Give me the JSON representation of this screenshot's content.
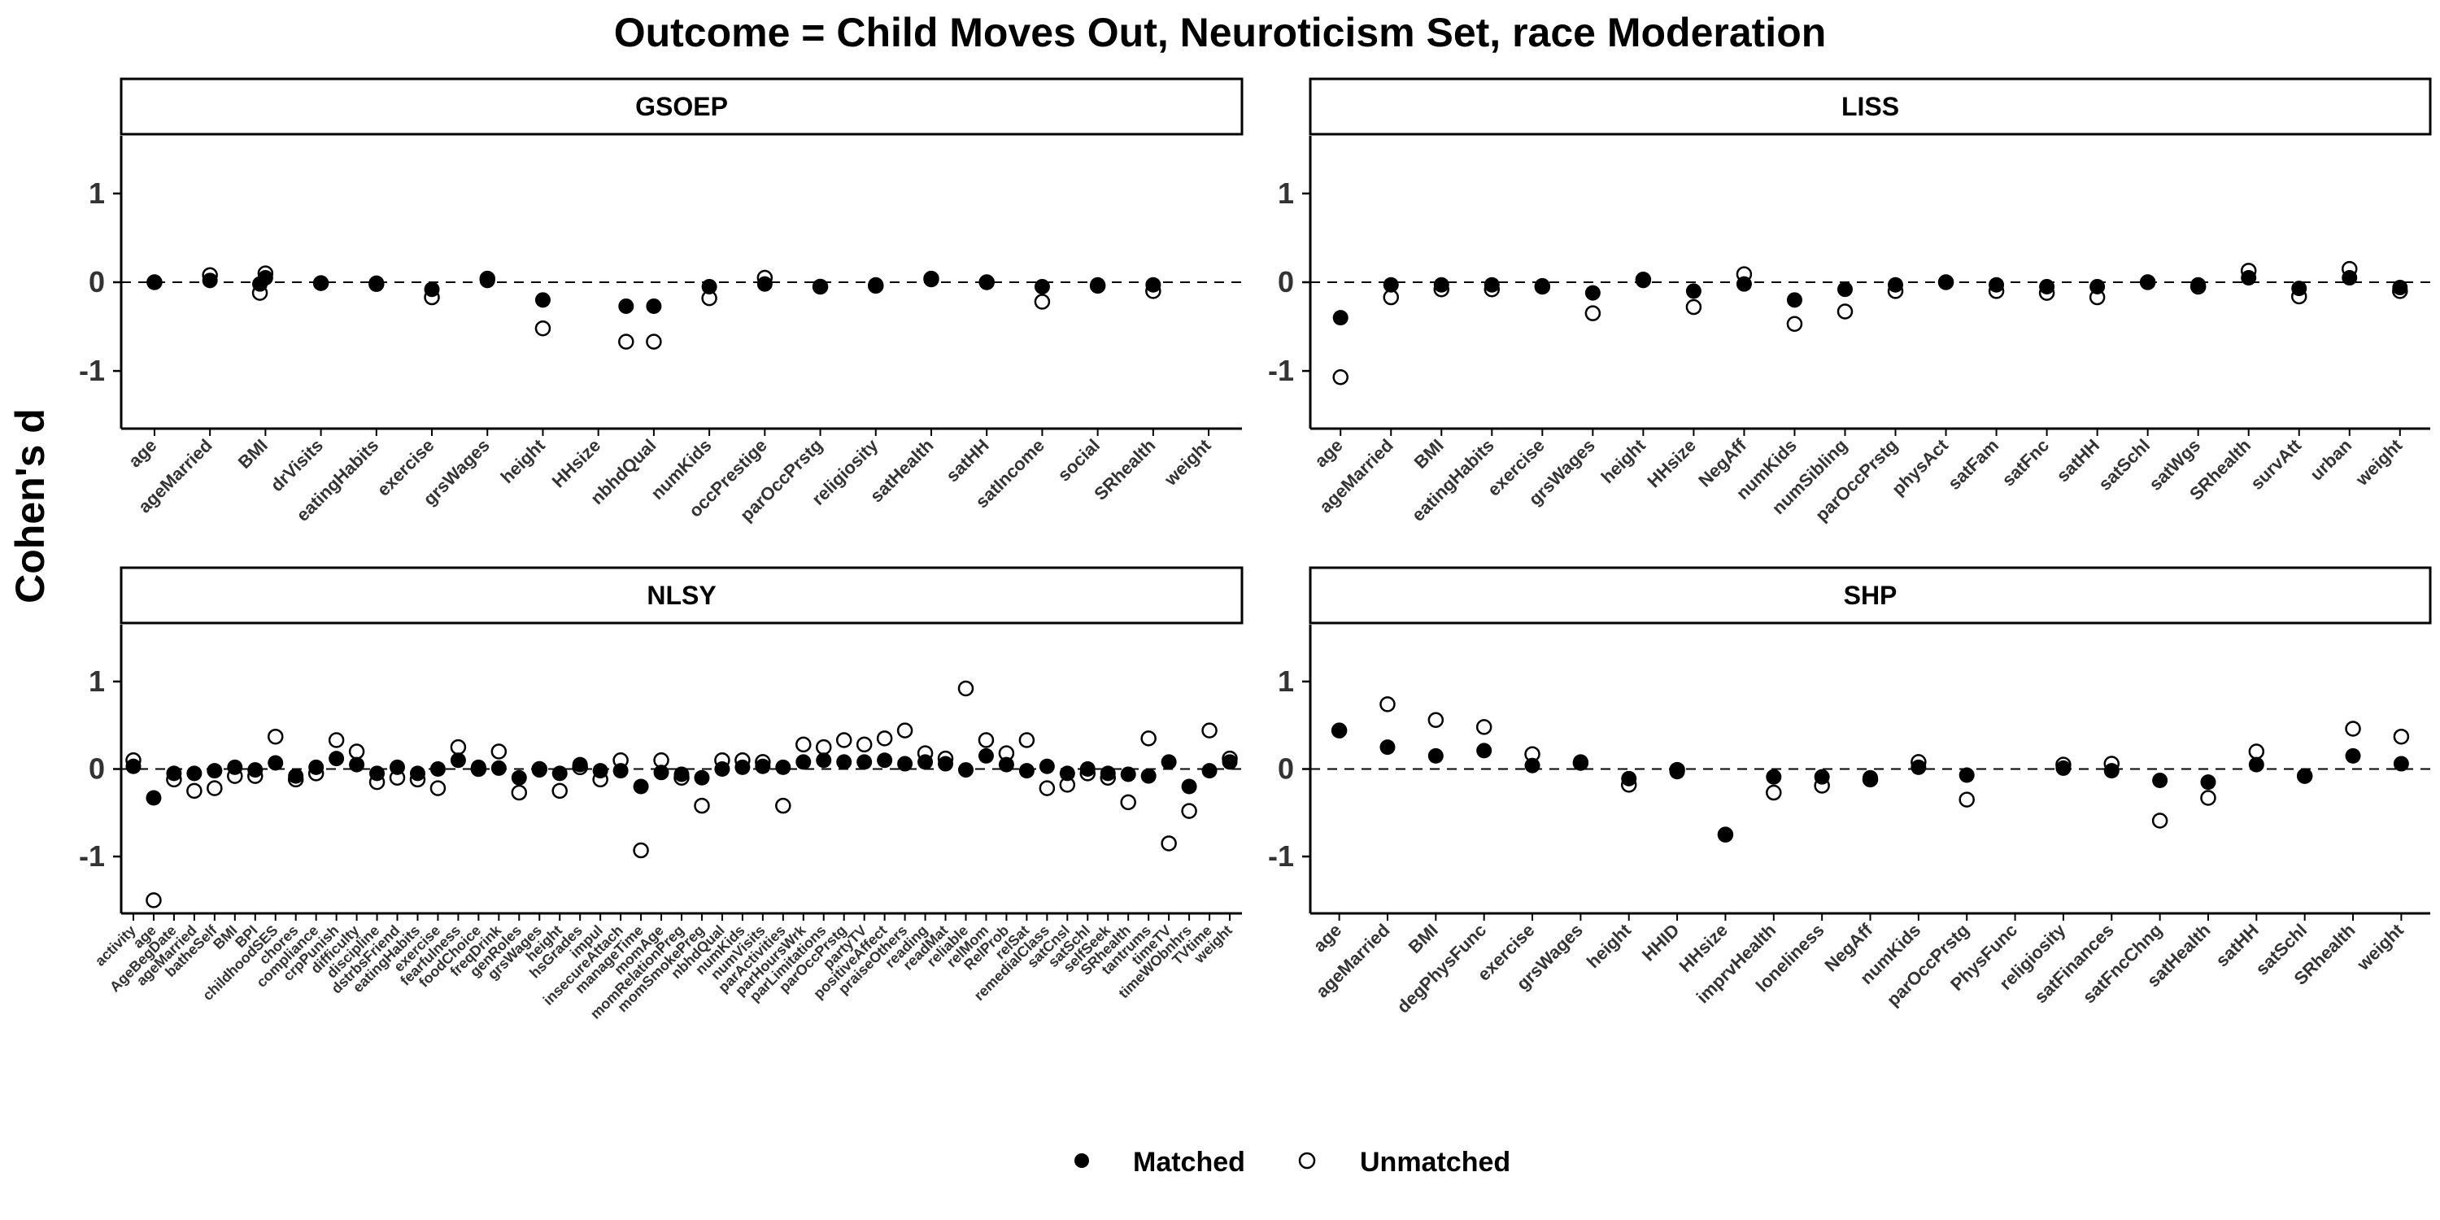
{
  "title": "Outcome = Child Moves Out, Neuroticism Set, race Moderation",
  "ylabel": "Cohen's d",
  "legend": {
    "placement": "bottom",
    "matched_label": "Matched",
    "unmatched_label": "Unmatched"
  },
  "chart_data": [
    {
      "type": "scatter",
      "panel": "GSOEP",
      "ylim": [
        -1.65,
        1.65
      ],
      "yticks": [
        -1,
        0,
        1
      ],
      "reference_line": 0,
      "categories": [
        "age",
        "ageMarried",
        "BMI",
        "drVisits",
        "eatingHabits",
        "exercise",
        "grsWages",
        "height",
        "HHsize",
        "nbhdQual",
        "numKids",
        "occPrestige",
        "parOccPrstg",
        "religiosity",
        "satHealth",
        "satHH",
        "satIncome",
        "social",
        "SRhealth",
        "weight"
      ],
      "series": [
        {
          "name": "Matched",
          "x": [
            0,
            1,
            1.9,
            2,
            3,
            4,
            5,
            6,
            7,
            8.5,
            9,
            10,
            11,
            12,
            13,
            14,
            15,
            16,
            17,
            18
          ],
          "values": [
            0.0,
            0.02,
            -0.02,
            0.05,
            -0.01,
            -0.01,
            -0.08,
            0.02,
            -0.2,
            -0.27,
            -0.27,
            -0.05,
            -0.02,
            -0.05,
            -0.03,
            0.03,
            0.0,
            -0.05,
            -0.03,
            -0.03
          ]
        },
        {
          "name": "Unmatched",
          "x": [
            0,
            1,
            1.9,
            2,
            3,
            4,
            5,
            6,
            7,
            8.5,
            9,
            10,
            11,
            12,
            13,
            14,
            15,
            16,
            17,
            18
          ],
          "values": [
            0.0,
            0.08,
            -0.12,
            0.1,
            -0.01,
            -0.02,
            -0.17,
            0.04,
            -0.52,
            -0.67,
            -0.67,
            -0.18,
            0.05,
            -0.05,
            -0.04,
            0.04,
            0.0,
            -0.22,
            -0.04,
            -0.1
          ]
        }
      ]
    },
    {
      "type": "scatter",
      "panel": "LISS",
      "ylim": [
        -1.65,
        1.65
      ],
      "yticks": [
        -1,
        0,
        1
      ],
      "reference_line": 0,
      "categories": [
        "age",
        "ageMarried",
        "BMI",
        "eatingHabits",
        "exercise",
        "grsWages",
        "height",
        "HHsize",
        "NegAff",
        "numKids",
        "numSibling",
        "parOccPrstg",
        "physAct",
        "satFam",
        "satFnc",
        "satHH",
        "satSchl",
        "satWgs",
        "SRhealth",
        "survAtt",
        "urban",
        "weight"
      ],
      "series": [
        {
          "name": "Matched",
          "x": [
            0,
            1,
            2,
            3,
            4,
            5,
            6,
            7,
            8,
            9,
            10,
            11,
            12,
            13,
            14,
            15,
            16,
            17,
            18,
            19,
            20,
            21
          ],
          "values": [
            -0.4,
            -0.03,
            -0.03,
            -0.03,
            -0.04,
            -0.12,
            0.02,
            -0.1,
            -0.02,
            -0.2,
            -0.08,
            -0.03,
            0.0,
            -0.03,
            -0.05,
            -0.05,
            0.0,
            -0.03,
            0.05,
            -0.07,
            0.05,
            -0.06
          ]
        },
        {
          "name": "Unmatched",
          "x": [
            0,
            1,
            2,
            3,
            4,
            5,
            6,
            7,
            8,
            9,
            10,
            11,
            12,
            13,
            14,
            15,
            16,
            17,
            18,
            19,
            20,
            21
          ],
          "values": [
            -1.07,
            -0.17,
            -0.08,
            -0.08,
            -0.05,
            -0.35,
            0.03,
            -0.28,
            0.09,
            -0.47,
            -0.33,
            -0.1,
            0.0,
            -0.1,
            -0.12,
            -0.17,
            0.0,
            -0.05,
            0.13,
            -0.16,
            0.15,
            -0.1
          ]
        }
      ]
    },
    {
      "type": "scatter",
      "panel": "NLSY",
      "ylim": [
        -1.65,
        1.65
      ],
      "yticks": [
        -1,
        0,
        1
      ],
      "reference_line": 0,
      "categories": [
        "activity",
        "age",
        "AgeBegDate",
        "ageMarried",
        "batheSelf",
        "BMI",
        "BPI",
        "childhoodSES",
        "chores",
        "compliance",
        "crpPunish",
        "difficulty",
        "discipline",
        "dstrbsFriend",
        "eatingHabits",
        "exercise",
        "fearfulness",
        "foodChoice",
        "freqDrink",
        "genRoles",
        "grsWages",
        "height",
        "hsGrades",
        "impul",
        "insecureAttach",
        "manageTime",
        "momAge",
        "momRelationPreg",
        "momSmokePreg",
        "nbhdQual",
        "numKids",
        "numVisits",
        "parActivities",
        "parHoursWrk",
        "parLimitations",
        "parOccPrstg",
        "partyTV",
        "positiveAffect",
        "praiseOthers",
        "reading",
        "readMat",
        "reliable",
        "relMom",
        "RelProb",
        "relSat",
        "remedialClass",
        "satCnsl",
        "satSchl",
        "selfSeek",
        "SRhealth",
        "tantrums",
        "timeTV",
        "timeWObnhrs",
        "TVtime",
        "weight"
      ],
      "series": [
        {
          "name": "Matched",
          "x": [
            0,
            1,
            2,
            3,
            4,
            5,
            6,
            7,
            8,
            9,
            10,
            11,
            12,
            13,
            14,
            15,
            16,
            17,
            18,
            19,
            20,
            21,
            22,
            23,
            24,
            25,
            26,
            27,
            28,
            29,
            30,
            31,
            32,
            33,
            34,
            35,
            36,
            37,
            38,
            39,
            40,
            41,
            42,
            43,
            44,
            45,
            46,
            47,
            48,
            49,
            50,
            51,
            52,
            53,
            54
          ],
          "values": [
            0.03,
            -0.33,
            -0.05,
            -0.05,
            -0.02,
            0.02,
            -0.01,
            0.07,
            -0.08,
            0.02,
            0.12,
            0.05,
            -0.05,
            0.02,
            -0.05,
            0.0,
            0.1,
            0.02,
            0.01,
            -0.1,
            -0.01,
            -0.05,
            0.05,
            -0.02,
            -0.02,
            -0.2,
            -0.04,
            -0.06,
            -0.1,
            0.0,
            0.02,
            0.03,
            0.02,
            0.08,
            0.1,
            0.08,
            0.08,
            0.1,
            0.06,
            0.08,
            0.06,
            -0.01,
            0.15,
            0.05,
            -0.02,
            0.03,
            -0.05,
            0.0,
            -0.05,
            -0.06,
            -0.08,
            0.08,
            -0.2,
            -0.02,
            0.08
          ]
        },
        {
          "name": "Unmatched",
          "x": [
            0,
            1,
            2,
            3,
            4,
            5,
            6,
            7,
            8,
            9,
            10,
            11,
            12,
            13,
            14,
            15,
            16,
            17,
            18,
            19,
            20,
            21,
            22,
            23,
            24,
            25,
            26,
            27,
            28,
            29,
            30,
            31,
            32,
            33,
            34,
            35,
            36,
            37,
            38,
            39,
            40,
            41,
            42,
            43,
            44,
            45,
            46,
            47,
            48,
            49,
            50,
            51,
            52,
            53,
            54
          ],
          "values": [
            0.1,
            -1.5,
            -0.12,
            -0.25,
            -0.22,
            -0.08,
            -0.08,
            0.37,
            -0.12,
            -0.05,
            0.33,
            0.2,
            -0.15,
            -0.1,
            -0.12,
            -0.22,
            0.25,
            0.0,
            0.2,
            -0.27,
            0.0,
            -0.25,
            0.02,
            -0.12,
            0.1,
            -0.93,
            0.1,
            -0.1,
            -0.42,
            0.1,
            0.1,
            0.08,
            -0.42,
            0.28,
            0.25,
            0.33,
            0.28,
            0.35,
            0.44,
            0.18,
            0.12,
            0.92,
            0.33,
            0.18,
            0.33,
            -0.22,
            -0.18,
            -0.05,
            -0.1,
            -0.38,
            0.35,
            -0.85,
            -0.48,
            0.44,
            0.12
          ]
        }
      ]
    },
    {
      "type": "scatter",
      "panel": "SHP",
      "ylim": [
        -1.65,
        1.65
      ],
      "yticks": [
        -1,
        0,
        1
      ],
      "reference_line": 0,
      "categories": [
        "age",
        "ageMarried",
        "BMI",
        "degPhysFunc",
        "exercise",
        "grsWages",
        "height",
        "HHID",
        "HHsize",
        "imprvHealth",
        "loneliness",
        "NegAff",
        "numKids",
        "parOccPrstg",
        "PhysFunc",
        "religiosity",
        "satFinances",
        "satFncChng",
        "satHealth",
        "satHH",
        "satSchl",
        "SRhealth",
        "weight"
      ],
      "series": [
        {
          "name": "Matched",
          "x": [
            0,
            1,
            2,
            3,
            4,
            5,
            6,
            7,
            8,
            9,
            10,
            11,
            12,
            13,
            14,
            15,
            16,
            17,
            18,
            19,
            20,
            21,
            22
          ],
          "values": [
            0.44,
            0.25,
            0.15,
            0.21,
            0.04,
            0.08,
            -0.11,
            -0.03,
            -0.75,
            -0.09,
            -0.09,
            -0.1,
            0.02,
            -0.07,
            null,
            0.01,
            -0.02,
            -0.13,
            -0.15,
            0.05,
            -0.08,
            0.15,
            0.06
          ]
        },
        {
          "name": "Unmatched",
          "x": [
            0,
            1,
            2,
            3,
            4,
            5,
            6,
            7,
            8,
            9,
            10,
            11,
            12,
            13,
            14,
            15,
            16,
            17,
            18,
            19,
            20,
            21,
            22
          ],
          "values": [
            0.44,
            0.74,
            0.56,
            0.48,
            0.17,
            0.07,
            -0.18,
            -0.01,
            -0.75,
            -0.27,
            -0.19,
            -0.12,
            0.08,
            -0.35,
            null,
            0.05,
            0.06,
            -0.59,
            -0.33,
            0.2,
            -0.08,
            0.46,
            0.37
          ]
        }
      ]
    }
  ]
}
